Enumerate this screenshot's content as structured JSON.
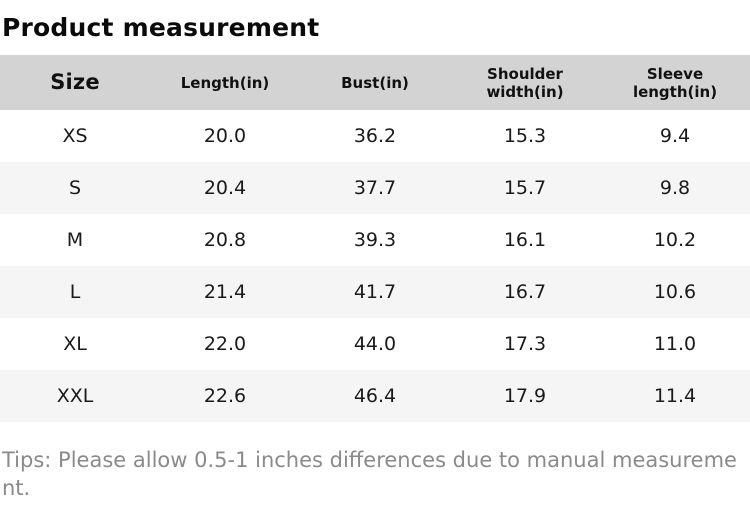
{
  "title": "Product measurement",
  "table": {
    "columns": [
      "Size",
      "Length(in)",
      "Bust(in)",
      "Shoulder width(in)",
      "Sleeve length(in)"
    ],
    "rows": [
      [
        "XS",
        "20.0",
        "36.2",
        "15.3",
        "9.4"
      ],
      [
        "S",
        "20.4",
        "37.7",
        "15.7",
        "9.8"
      ],
      [
        "M",
        "20.8",
        "39.3",
        "16.1",
        "10.2"
      ],
      [
        "L",
        "21.4",
        "41.7",
        "16.7",
        "10.6"
      ],
      [
        "XL",
        "22.0",
        "44.0",
        "17.3",
        "11.0"
      ],
      [
        "XXL",
        "22.6",
        "46.4",
        "17.9",
        "11.4"
      ]
    ]
  },
  "tips": "Tips: Please allow 0.5-1 inches differences due to manual measurement.",
  "colors": {
    "header_background": "#d3d3d3",
    "row_alt_background": "#f5f5f5",
    "text": "#1a1a1a",
    "tips_text": "#8a8a8a"
  }
}
